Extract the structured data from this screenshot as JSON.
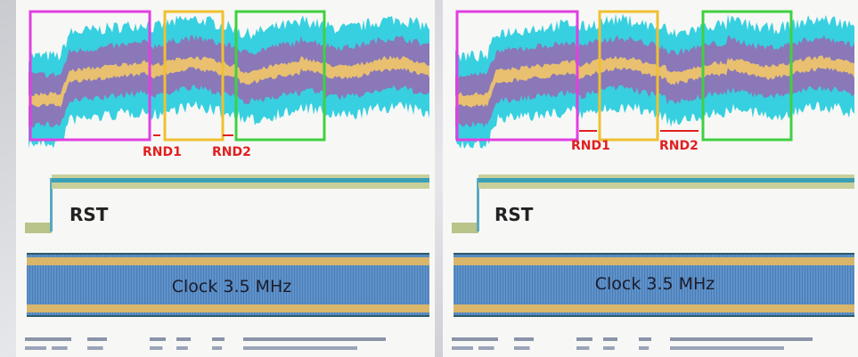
{
  "panels": [
    {
      "rnd1": "RND1",
      "rnd2": "RND2",
      "rst": "RST",
      "clock": "Clock 3.5 MHz"
    },
    {
      "rnd1": "RND1",
      "rnd2": "RND2",
      "rst": "RST",
      "clock": "Clock 3.5 MHz"
    }
  ]
}
